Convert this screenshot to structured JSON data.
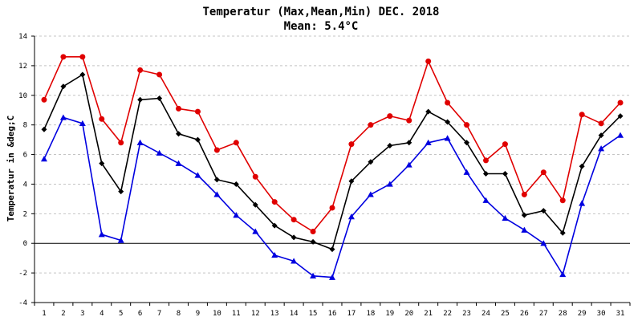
{
  "chart_data": {
    "type": "line",
    "title": "Temperatur (Max,Mean,Min) DEC. 2018",
    "subtitle": "Mean: 5.4°C",
    "xlabel": "",
    "ylabel": "Temperatur in &deg;C",
    "ylim": [
      -4,
      14
    ],
    "yticks": [
      -4,
      -2,
      0,
      2,
      4,
      6,
      8,
      10,
      12,
      14
    ],
    "grid": true,
    "legend": "none",
    "x": [
      "1",
      "2",
      "3",
      "4",
      "5",
      "6",
      "7",
      "8",
      "9",
      "10",
      "11",
      "12",
      "13",
      "14",
      "15",
      "16",
      "17",
      "18",
      "19",
      "20",
      "21",
      "22",
      "23",
      "24",
      "25",
      "26",
      "27",
      "28",
      "29",
      "30",
      "31"
    ],
    "series": [
      {
        "color": "#e00000",
        "marker": "circle",
        "values": [
          9.7,
          12.6,
          12.6,
          8.4,
          6.8,
          11.7,
          11.4,
          9.1,
          8.9,
          6.3,
          6.8,
          4.5,
          2.8,
          1.6,
          0.8,
          2.4,
          6.7,
          8.0,
          8.6,
          8.3,
          12.3,
          9.5,
          8.0,
          5.6,
          6.7,
          3.3,
          4.8,
          2.9,
          8.7,
          8.1,
          9.5
        ]
      },
      {
        "color": "#000000",
        "marker": "diamond",
        "values": [
          7.7,
          10.6,
          11.4,
          5.4,
          3.5,
          9.7,
          9.8,
          7.4,
          7.0,
          4.3,
          4.0,
          2.6,
          1.2,
          0.4,
          0.1,
          -0.4,
          4.2,
          5.5,
          6.6,
          6.8,
          8.9,
          8.2,
          6.8,
          4.7,
          4.7,
          1.9,
          2.2,
          0.7,
          5.2,
          7.3,
          8.6
        ]
      },
      {
        "color": "#0000e0",
        "marker": "triangle",
        "values": [
          5.7,
          8.5,
          8.1,
          0.6,
          0.2,
          6.8,
          6.1,
          5.4,
          4.6,
          3.3,
          1.9,
          0.8,
          -0.8,
          -1.2,
          -2.2,
          -2.3,
          1.8,
          3.3,
          4.0,
          5.3,
          6.8,
          7.1,
          4.8,
          2.9,
          1.7,
          0.9,
          0.0,
          -2.1,
          2.7,
          6.4,
          7.3
        ]
      }
    ]
  }
}
